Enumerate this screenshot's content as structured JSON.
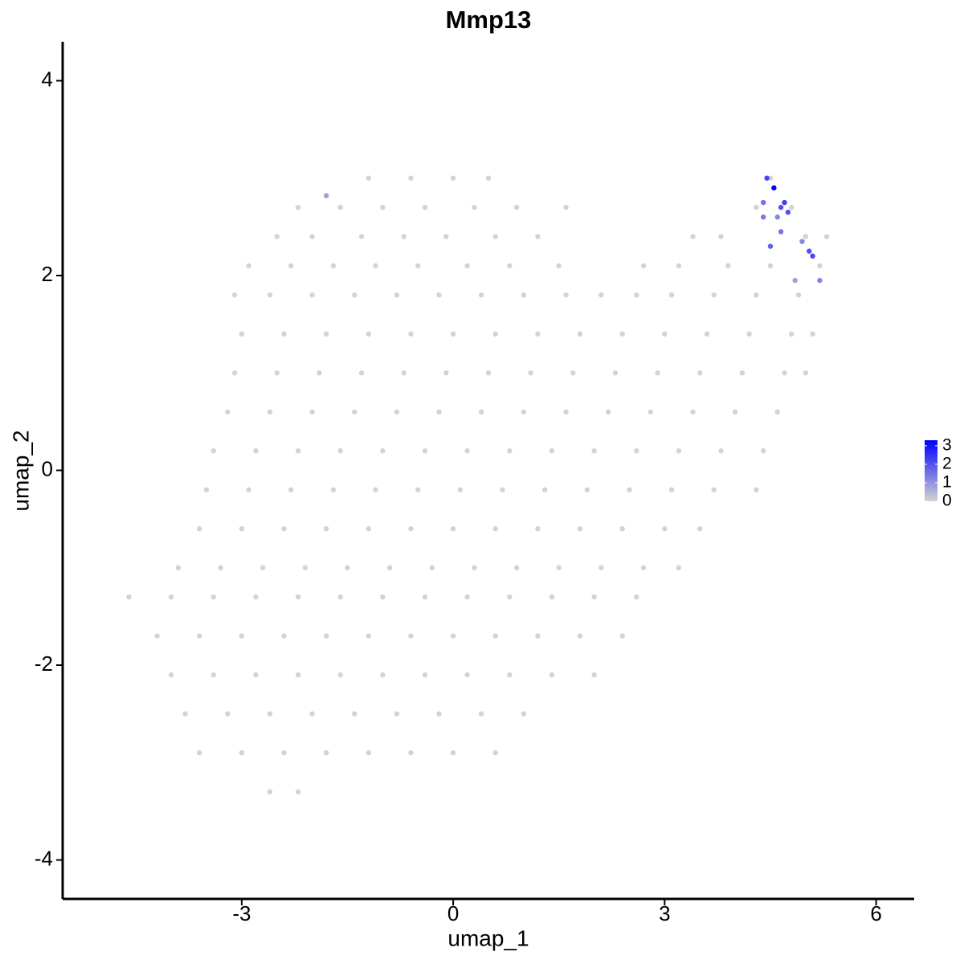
{
  "chart_data": {
    "type": "scatter",
    "title": "Mmp13",
    "x_label": "umap_1",
    "y_label": "umap_2",
    "xlim": [
      -5.54,
      6.54
    ],
    "xticks": [
      -3,
      0,
      3,
      6
    ],
    "ylim": [
      -4.4,
      4.4
    ],
    "yticks": [
      -4,
      -2,
      0,
      2,
      4
    ],
    "colorbar": {
      "lim": [
        0,
        3.3
      ],
      "ticks": [
        0,
        1,
        2,
        3
      ],
      "low": "#d3d3d3",
      "high": "#0000ff"
    },
    "series": [
      {
        "x": [
          -1.2,
          -0.6,
          0,
          0.5,
          4.5,
          -2.2,
          -1.6,
          -1,
          -0.4,
          0.3,
          0.9,
          1.6,
          4.3,
          4.8,
          -2.5,
          -2,
          -1.3,
          -0.7,
          -0.1,
          0.6,
          1.2,
          3.4,
          3.8,
          5.0,
          5.3,
          -2.9,
          -2.3,
          -1.7,
          -1.1,
          -0.5,
          0.2,
          0.8,
          1.5,
          2.7,
          3.2,
          3.9,
          4.5,
          5.2,
          -3.1,
          -2.6,
          -2.0,
          -1.4,
          -0.8,
          -0.2,
          0.4,
          1.0,
          1.6,
          2.1,
          2.6,
          3.1,
          3.7,
          4.3,
          4.9,
          -3.0,
          -2.4,
          -1.8,
          -1.2,
          -0.6,
          0,
          0.6,
          1.2,
          1.8,
          2.4,
          3.0,
          3.6,
          4.2,
          4.8,
          5.1,
          -3.1,
          -2.5,
          -1.9,
          -1.3,
          -0.7,
          -0.1,
          0.5,
          1.1,
          1.7,
          2.3,
          2.9,
          3.5,
          4.1,
          4.7,
          5.0,
          -3.2,
          -2.6,
          -2.0,
          -1.4,
          -0.8,
          -0.2,
          0.4,
          1.0,
          1.6,
          2.2,
          2.8,
          3.4,
          4.0,
          4.6,
          -3.4,
          -2.8,
          -2.2,
          -1.6,
          -1.0,
          -0.4,
          0.2,
          0.8,
          1.4,
          2.0,
          2.6,
          3.2,
          3.8,
          4.4,
          -3.5,
          -2.9,
          -2.3,
          -1.7,
          -1.1,
          -0.5,
          0.1,
          0.7,
          1.3,
          1.9,
          2.5,
          3.1,
          3.7,
          4.3,
          -3.6,
          -3.0,
          -2.4,
          -1.8,
          -1.2,
          -0.6,
          0,
          0.6,
          1.2,
          1.8,
          2.4,
          3.0,
          3.5,
          -3.9,
          -3.3,
          -2.7,
          -2.1,
          -1.5,
          -0.9,
          -0.3,
          0.3,
          0.9,
          1.5,
          2.1,
          2.7,
          3.2,
          -4.6,
          -4.0,
          -3.4,
          -2.8,
          -2.2,
          -1.6,
          -1.0,
          -0.4,
          0.2,
          0.8,
          1.4,
          2.0,
          2.6,
          -4.2,
          -3.6,
          -3.0,
          -2.4,
          -1.8,
          -1.2,
          -0.6,
          0,
          0.6,
          1.2,
          1.8,
          2.4,
          -4.0,
          -3.4,
          -2.8,
          -2.2,
          -1.6,
          -1.0,
          -0.4,
          0.2,
          0.8,
          1.4,
          2.0,
          -3.8,
          -3.2,
          -2.6,
          -2.0,
          -1.4,
          -0.8,
          -0.2,
          0.4,
          1.0,
          -3.6,
          -3.0,
          -2.4,
          -1.8,
          -1.2,
          -0.6,
          0,
          0.6,
          -2.6,
          -2.2,
          4.45,
          4.55,
          4.4,
          4.6,
          4.65,
          4.7,
          4.75,
          4.5,
          4.65,
          4.95,
          5.05,
          5.1,
          5.2,
          4.85,
          -1.8,
          4.4
        ],
        "y": [
          3.0,
          3.0,
          3.0,
          3.0,
          3.0,
          2.7,
          2.7,
          2.7,
          2.7,
          2.7,
          2.7,
          2.7,
          2.7,
          2.7,
          2.4,
          2.4,
          2.4,
          2.4,
          2.4,
          2.4,
          2.4,
          2.4,
          2.4,
          2.4,
          2.4,
          2.1,
          2.1,
          2.1,
          2.1,
          2.1,
          2.1,
          2.1,
          2.1,
          2.1,
          2.1,
          2.1,
          2.1,
          2.1,
          1.8,
          1.8,
          1.8,
          1.8,
          1.8,
          1.8,
          1.8,
          1.8,
          1.8,
          1.8,
          1.8,
          1.8,
          1.8,
          1.8,
          1.8,
          1.4,
          1.4,
          1.4,
          1.4,
          1.4,
          1.4,
          1.4,
          1.4,
          1.4,
          1.4,
          1.4,
          1.4,
          1.4,
          1.4,
          1.4,
          1.0,
          1.0,
          1.0,
          1.0,
          1.0,
          1.0,
          1.0,
          1.0,
          1.0,
          1.0,
          1.0,
          1.0,
          1.0,
          1.0,
          1.0,
          0.6,
          0.6,
          0.6,
          0.6,
          0.6,
          0.6,
          0.6,
          0.6,
          0.6,
          0.6,
          0.6,
          0.6,
          0.6,
          0.6,
          0.2,
          0.2,
          0.2,
          0.2,
          0.2,
          0.2,
          0.2,
          0.2,
          0.2,
          0.2,
          0.2,
          0.2,
          0.2,
          0.2,
          -0.2,
          -0.2,
          -0.2,
          -0.2,
          -0.2,
          -0.2,
          -0.2,
          -0.2,
          -0.2,
          -0.2,
          -0.2,
          -0.2,
          -0.2,
          -0.2,
          -0.6,
          -0.6,
          -0.6,
          -0.6,
          -0.6,
          -0.6,
          -0.6,
          -0.6,
          -0.6,
          -0.6,
          -0.6,
          -0.6,
          -0.6,
          -1.0,
          -1.0,
          -1.0,
          -1.0,
          -1.0,
          -1.0,
          -1.0,
          -1.0,
          -1.0,
          -1.0,
          -1.0,
          -1.0,
          -1.0,
          -1.3,
          -1.3,
          -1.3,
          -1.3,
          -1.3,
          -1.3,
          -1.3,
          -1.3,
          -1.3,
          -1.3,
          -1.3,
          -1.3,
          -1.3,
          -1.7,
          -1.7,
          -1.7,
          -1.7,
          -1.7,
          -1.7,
          -1.7,
          -1.7,
          -1.7,
          -1.7,
          -1.7,
          -1.7,
          -2.1,
          -2.1,
          -2.1,
          -2.1,
          -2.1,
          -2.1,
          -2.1,
          -2.1,
          -2.1,
          -2.1,
          -2.1,
          -2.5,
          -2.5,
          -2.5,
          -2.5,
          -2.5,
          -2.5,
          -2.5,
          -2.5,
          -2.5,
          -2.9,
          -2.9,
          -2.9,
          -2.9,
          -2.9,
          -2.9,
          -2.9,
          -2.9,
          -3.3,
          -3.3,
          3.0,
          2.9,
          2.75,
          2.6,
          2.7,
          2.75,
          2.65,
          2.3,
          2.45,
          2.35,
          2.25,
          2.2,
          1.95,
          1.95,
          2.82,
          2.6
        ],
        "values": [
          0,
          0,
          0,
          0,
          0,
          0,
          0,
          0,
          0,
          0,
          0,
          0,
          0,
          0,
          0,
          0,
          0,
          0,
          0,
          0,
          0,
          0,
          0,
          0,
          0,
          0,
          0,
          0,
          0,
          0,
          0,
          0,
          0,
          0,
          0,
          0,
          0,
          0,
          0,
          0,
          0,
          0,
          0,
          0,
          0,
          0,
          0,
          0,
          0,
          0,
          0,
          0,
          0,
          0,
          0,
          0,
          0,
          0,
          0,
          0,
          0,
          0,
          0,
          0,
          0,
          0,
          0,
          0,
          0,
          0,
          0,
          0,
          0,
          0,
          0,
          0,
          0,
          0,
          0,
          0,
          0,
          0,
          0,
          0,
          0,
          0,
          0,
          0,
          0,
          0,
          0,
          0,
          0,
          0,
          0,
          0,
          0,
          0,
          0,
          0,
          0,
          0,
          0,
          0,
          0,
          0,
          0,
          0,
          0,
          0,
          0,
          0,
          0,
          0,
          0,
          0,
          0,
          0,
          0,
          0,
          0,
          0,
          0,
          0,
          0,
          0,
          0,
          0,
          0,
          0,
          0,
          0,
          0,
          0,
          0,
          0,
          0,
          0,
          0,
          0,
          0,
          0,
          0,
          0,
          0,
          0,
          0,
          0,
          0,
          0,
          0,
          0,
          0,
          0,
          0,
          0,
          0,
          0,
          0,
          0,
          0,
          0,
          0,
          0,
          0,
          0,
          0,
          0,
          0,
          0,
          0,
          0,
          0,
          0,
          0,
          0,
          0,
          0,
          0,
          0,
          0,
          0,
          0,
          0,
          0,
          0,
          0,
          0,
          0,
          0,
          0,
          0,
          0,
          0,
          0,
          0,
          0,
          0,
          0,
          0,
          0,
          0,
          0,
          0,
          0,
          0,
          2.2,
          3.3,
          1.5,
          1.2,
          2.0,
          2.3,
          2.0,
          1.8,
          1.5,
          1.2,
          2.0,
          2.2,
          1.2,
          0.8,
          0.8,
          1.4
        ]
      }
    ]
  }
}
